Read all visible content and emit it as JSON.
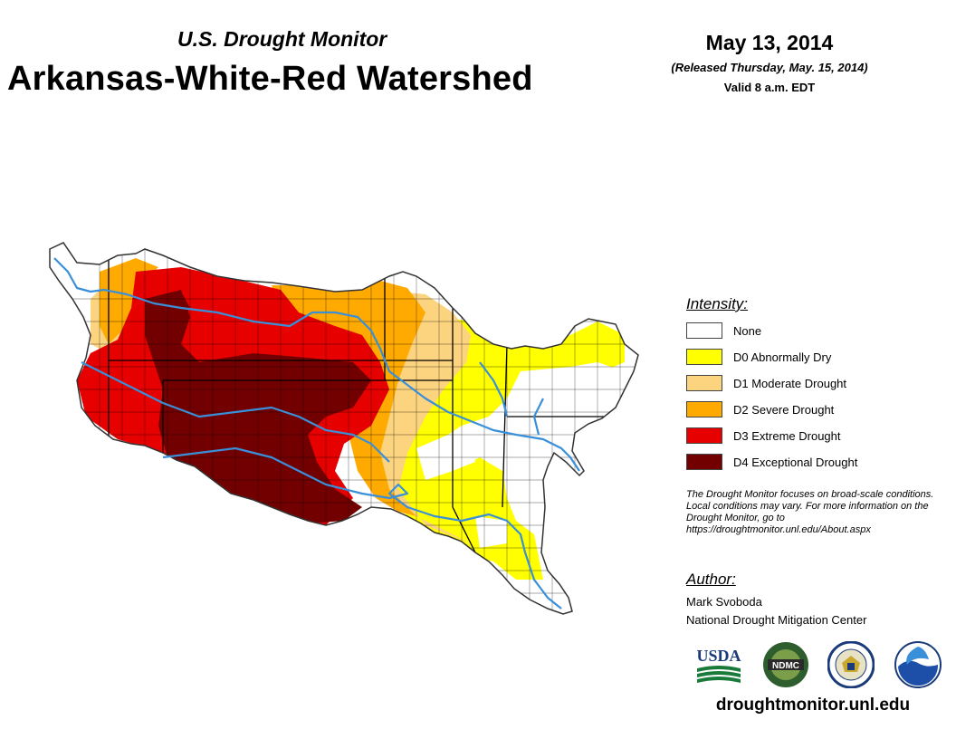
{
  "header": {
    "subtitle": "U.S. Drought Monitor",
    "title": "Arkansas-White-Red Watershed",
    "date": "May 13, 2014",
    "released": "(Released Thursday, May. 15, 2014)",
    "valid": "Valid 8 a.m. EDT"
  },
  "legend": {
    "heading": "Intensity:",
    "items": [
      {
        "label": "None",
        "color": "#ffffff"
      },
      {
        "label": "D0 Abnormally Dry",
        "color": "#ffff00"
      },
      {
        "label": "D1 Moderate Drought",
        "color": "#fcd37f"
      },
      {
        "label": "D2 Severe Drought",
        "color": "#ffaa00"
      },
      {
        "label": "D3 Extreme Drought",
        "color": "#e60000"
      },
      {
        "label": "D4 Exceptional Drought",
        "color": "#730000"
      }
    ]
  },
  "note": "The Drought Monitor focuses on broad-scale conditions. Local conditions may vary. For more information on the Drought Monitor, go to https://droughtmonitor.unl.edu/About.aspx",
  "author": {
    "heading": "Author:",
    "name": "Mark Svoboda",
    "org": "National Drought Mitigation Center"
  },
  "logos": {
    "usda": "USDA",
    "ndmc": "NDMC"
  },
  "website": "droughtmonitor.unl.edu",
  "colors": {
    "river": "#3a8fd9",
    "boundary": "#333333"
  }
}
